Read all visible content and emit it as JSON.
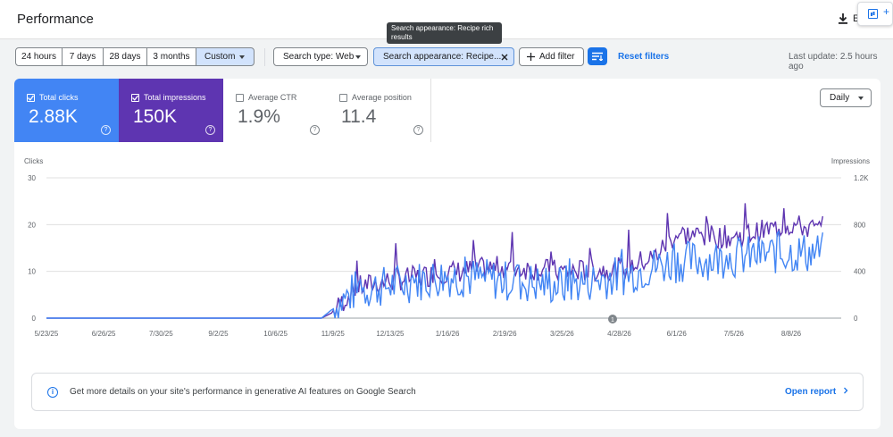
{
  "header": {
    "title": "Performance",
    "export_letter": "E"
  },
  "filters": {
    "date_ranges": [
      "24 hours",
      "7 days",
      "28 days",
      "3 months",
      "Custom"
    ],
    "search_type": "Search type: Web",
    "search_appearance": "Search appearance: Recipe...",
    "add_filter": "Add filter",
    "reset": "Reset filters",
    "last_update": "Last update: 2.5 hours ago",
    "tooltip": "Search appearance: Recipe rich results"
  },
  "metrics": [
    {
      "label": "Total clicks",
      "value": "2.88K",
      "checked": true,
      "color": "#4285f4"
    },
    {
      "label": "Total impressions",
      "value": "150K",
      "checked": true,
      "color": "#5e35b1"
    },
    {
      "label": "Average CTR",
      "value": "1.9%",
      "checked": false
    },
    {
      "label": "Average position",
      "value": "11.4",
      "checked": false
    }
  ],
  "granularity": "Daily",
  "chart_data": {
    "type": "line",
    "left_axis_label": "Clicks",
    "right_axis_label": "Impressions",
    "left_ticks": [
      "30",
      "20",
      "10",
      "0"
    ],
    "right_ticks": [
      "1.2K",
      "800",
      "400",
      "0"
    ],
    "ylim_left": [
      0,
      30
    ],
    "ylim_right": [
      0,
      1200
    ],
    "x_ticks": [
      "5/23/25",
      "6/26/25",
      "7/30/25",
      "9/2/25",
      "10/6/25",
      "11/9/25",
      "12/13/25",
      "1/16/26",
      "2/19/26",
      "3/25/26",
      "4/28/26",
      "6/1/26",
      "7/5/26",
      "8/8/26"
    ],
    "annotation_marker": "1",
    "series": [
      {
        "name": "Clicks",
        "color": "#4285f4"
      },
      {
        "name": "Impressions",
        "color": "#5e35b1"
      }
    ],
    "trend_points": {
      "x_index": [
        0,
        4.8,
        5.0,
        5.4,
        6.0,
        7.0,
        8.0,
        9.0,
        10.0,
        10.6,
        11.0,
        12.0,
        13.0,
        13.5
      ],
      "clicks": [
        0,
        0,
        2,
        6,
        7,
        9,
        8,
        7,
        9,
        11,
        12,
        13,
        14,
        14
      ],
      "impressions": [
        0,
        0,
        50,
        260,
        320,
        390,
        440,
        400,
        420,
        520,
        720,
        690,
        800,
        750
      ]
    }
  },
  "ai_banner": {
    "text": "Get more details on your site's performance in generative AI features on Google Search",
    "link": "Open report"
  }
}
